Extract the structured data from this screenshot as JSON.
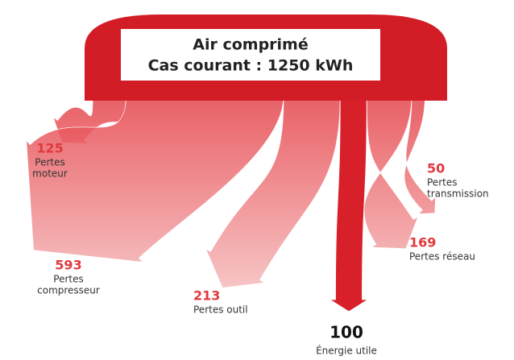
{
  "chart_data": {
    "type": "sankey",
    "title": "Air comprimé",
    "subtitle": "Cas courant : 1250 kWh",
    "color": "#d7202a",
    "flows": [
      {
        "value": 125,
        "label": [
          "Pertes",
          "moteur"
        ]
      },
      {
        "value": 593,
        "label": [
          "Pertes",
          "compresseur"
        ]
      },
      {
        "value": 213,
        "label": [
          "Pertes outil"
        ]
      },
      {
        "value": 100,
        "label": [
          "Énergie utile"
        ]
      },
      {
        "value": 169,
        "label": [
          "Pertes réseau"
        ]
      },
      {
        "value": 50,
        "label": [
          "Pertes",
          "transmission"
        ]
      }
    ]
  }
}
